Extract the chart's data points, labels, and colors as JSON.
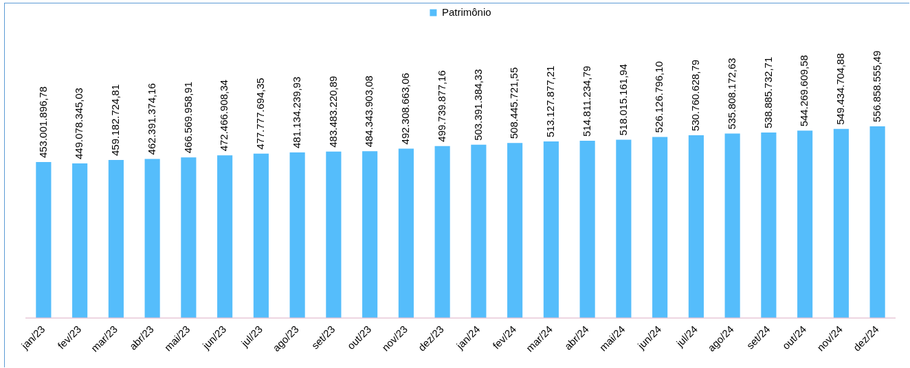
{
  "chart_data": {
    "type": "bar",
    "categories": [
      "jan/23",
      "fev/23",
      "mar/23",
      "abr/23",
      "mai/23",
      "jun/23",
      "jul/23",
      "ago/23",
      "set/23",
      "out/23",
      "nov/23",
      "dez/23",
      "jan/24",
      "fev/24",
      "mar/24",
      "abr/24",
      "mai/24",
      "jun/24",
      "jul/24",
      "ago/24",
      "set/24",
      "out/24",
      "nov/24",
      "dez/24"
    ],
    "series": [
      {
        "name": "Patrimônio",
        "color": "#55bdfb",
        "values": [
          453001896.78,
          449078345.03,
          459182724.81,
          462391374.16,
          466569958.91,
          472466908.34,
          477777694.35,
          481134239.93,
          483483220.89,
          484343903.08,
          492308663.06,
          499739877.16,
          503391384.33,
          508445721.55,
          513127877.21,
          514811234.79,
          518015161.94,
          526126796.1,
          530760628.79,
          535808172.63,
          538885732.71,
          544269609.58,
          549434704.88,
          556858555.49
        ],
        "value_labels": [
          "453.001.896,78",
          "449.078.345,03",
          "459.182.724,81",
          "462.391.374,16",
          "466.569.958,91",
          "472.466.908,34",
          "477.777.694,35",
          "481.134.239,93",
          "483.483.220,89",
          "484.343.903,08",
          "492.308.663,06",
          "499.739.877,16",
          "503.391.384,33",
          "508.445.721,55",
          "513.127.877,21",
          "514.811.234,79",
          "518.015.161,94",
          "526.126.796,10",
          "530.760.628,79",
          "535.808.172,63",
          "538.885.732,71",
          "544.269.609,58",
          "549.434.704,88",
          "556.858.555,49"
        ]
      }
    ],
    "legend": "top",
    "grid": false,
    "tick_labels": "x"
  }
}
